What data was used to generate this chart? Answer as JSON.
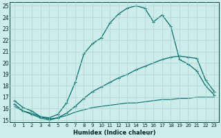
{
  "xlabel": "Humidex (Indice chaleur)",
  "bg_color": "#ceecea",
  "grid_color": "#a8d4d0",
  "line_color": "#006b6b",
  "xlim": [
    -0.5,
    23.5
  ],
  "ylim": [
    14.8,
    25.3
  ],
  "xticks": [
    0,
    1,
    2,
    3,
    4,
    5,
    6,
    7,
    8,
    9,
    10,
    11,
    12,
    13,
    14,
    15,
    16,
    17,
    18,
    19,
    20,
    21,
    22,
    23
  ],
  "yticks": [
    15,
    16,
    17,
    18,
    19,
    20,
    21,
    22,
    23,
    24,
    25
  ],
  "series1_x": [
    0,
    1,
    2,
    3,
    4,
    5,
    6,
    7,
    8,
    9,
    10,
    11,
    12,
    13,
    14,
    15,
    16,
    17,
    18,
    19,
    20,
    21,
    22,
    23
  ],
  "series1_y": [
    16.7,
    16.1,
    15.8,
    15.3,
    15.2,
    15.5,
    16.5,
    18.3,
    20.8,
    21.7,
    22.2,
    23.5,
    24.3,
    24.8,
    25.0,
    24.8,
    23.6,
    24.2,
    23.2,
    20.3,
    19.9,
    19.3,
    18.0,
    17.2
  ],
  "series2_x": [
    0,
    1,
    2,
    3,
    4,
    5,
    6,
    7,
    8,
    9,
    10,
    11,
    12,
    13,
    14,
    15,
    16,
    17,
    18,
    19,
    20,
    21,
    22,
    23
  ],
  "series2_y": [
    16.4,
    15.8,
    15.5,
    15.2,
    15.0,
    15.2,
    15.6,
    16.2,
    16.9,
    17.5,
    17.9,
    18.3,
    18.7,
    19.0,
    19.4,
    19.7,
    20.0,
    20.3,
    20.5,
    20.6,
    20.5,
    20.4,
    18.5,
    17.5
  ],
  "series3_x": [
    0,
    1,
    2,
    3,
    4,
    5,
    6,
    7,
    8,
    9,
    10,
    11,
    12,
    13,
    14,
    15,
    16,
    17,
    18,
    19,
    20,
    21,
    22,
    23
  ],
  "series3_y": [
    16.2,
    15.8,
    15.6,
    15.3,
    15.1,
    15.2,
    15.4,
    15.7,
    15.9,
    16.1,
    16.2,
    16.3,
    16.4,
    16.5,
    16.5,
    16.6,
    16.7,
    16.8,
    16.8,
    16.9,
    16.9,
    17.0,
    17.0,
    17.0
  ]
}
